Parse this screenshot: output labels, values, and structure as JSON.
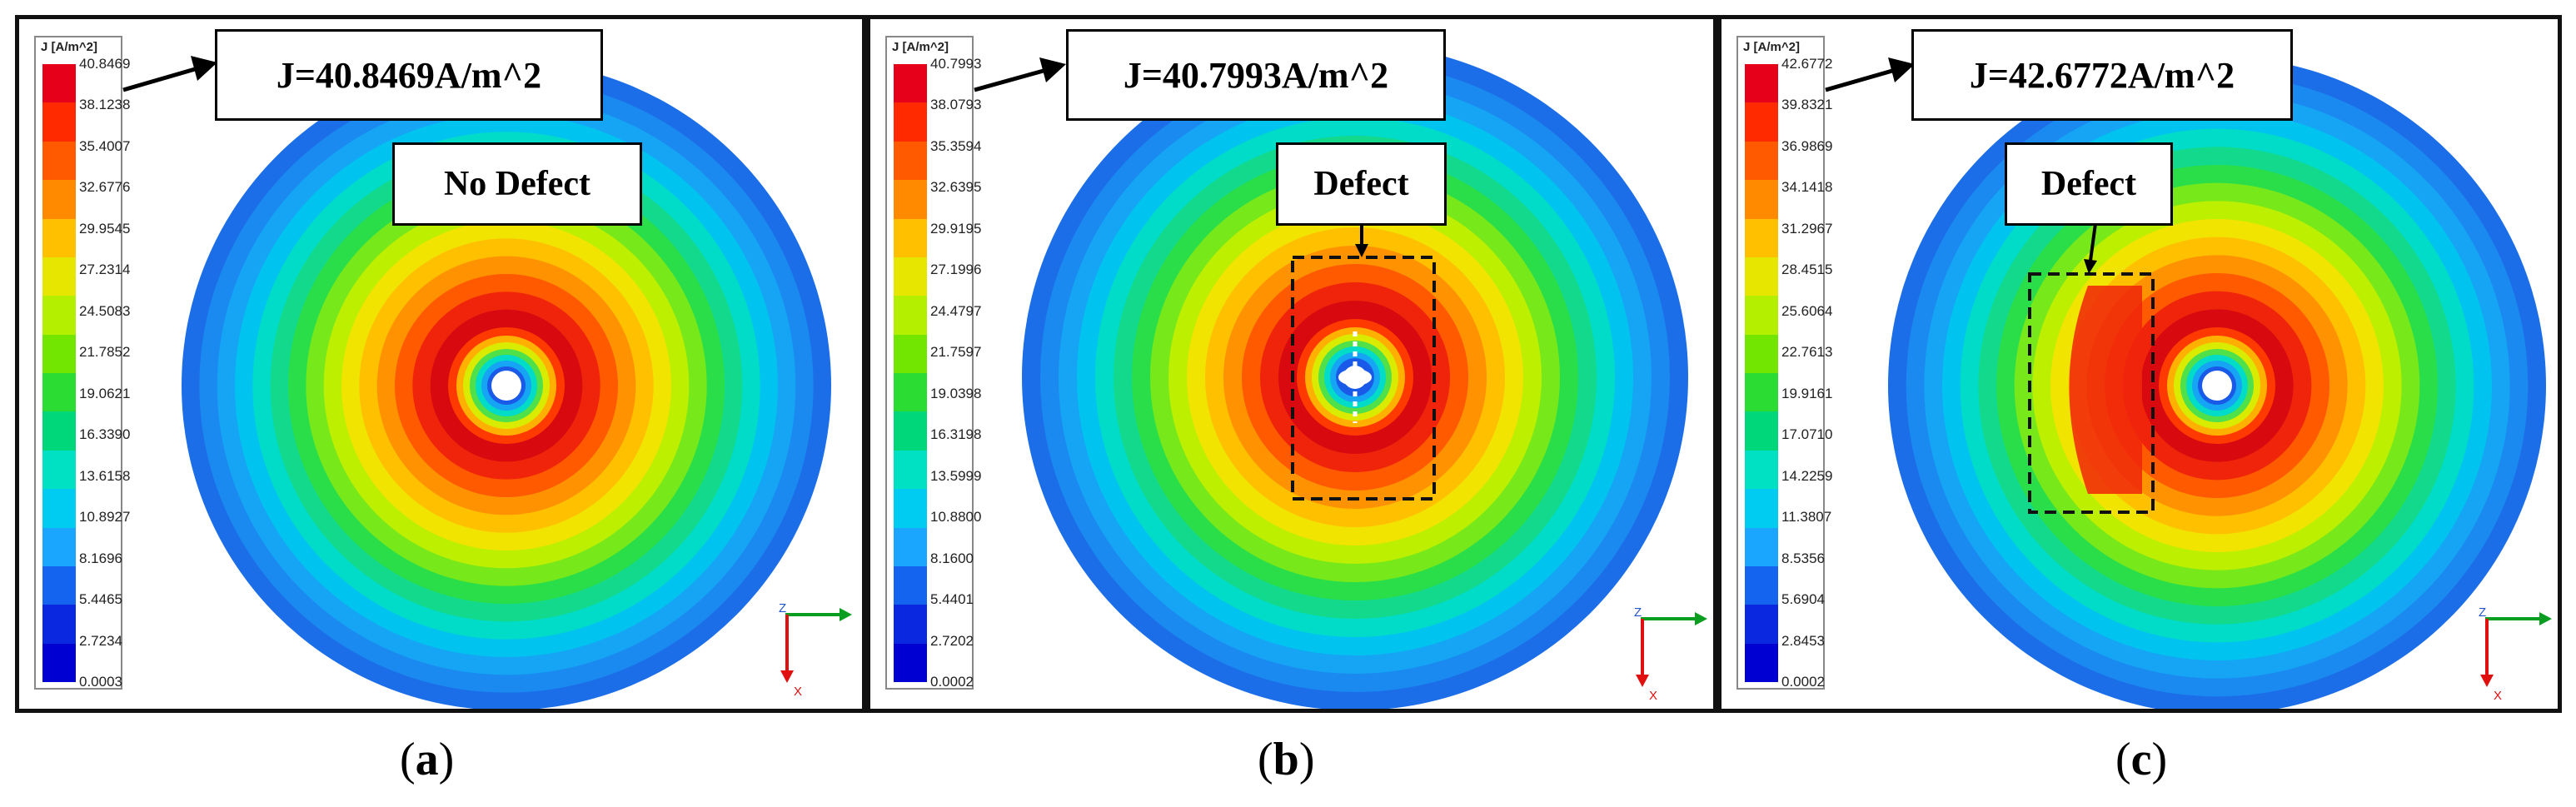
{
  "colors": {
    "scale": [
      "#e6001a",
      "#ff2a00",
      "#ff5a00",
      "#ff8a00",
      "#ffc000",
      "#e6e600",
      "#b4ef00",
      "#73e600",
      "#2bdc33",
      "#00d77a",
      "#00e0c2",
      "#00ccf2",
      "#1aa6ff",
      "#1464f0",
      "#0a28e0",
      "#0000d2"
    ],
    "rings": [
      "#1c6ee8",
      "#1a8af0",
      "#16a4f4",
      "#00c4ef",
      "#00dcc8",
      "#12d98c",
      "#2ade4a",
      "#77e81a",
      "#bdef00",
      "#f0e400",
      "#ffc000",
      "#ff9200",
      "#ff5a00",
      "#f0240a",
      "#d80a10"
    ]
  },
  "panels": [
    {
      "id": "a",
      "caption": "a",
      "legend_title": "J [A/m^2]",
      "legend_ticks": [
        "40.8469",
        "38.1238",
        "35.4007",
        "32.6776",
        "29.9545",
        "27.2314",
        "24.5083",
        "21.7852",
        "19.0621",
        "16.3390",
        "13.6158",
        "10.8927",
        "8.1696",
        "5.4465",
        "2.7234",
        "0.0003"
      ],
      "j_label": "J=40.8469A/m^2",
      "defect_label": "No Defect"
    },
    {
      "id": "b",
      "caption": "b",
      "legend_title": "J [A/m^2]",
      "legend_ticks": [
        "40.7993",
        "38.0793",
        "35.3594",
        "32.6395",
        "29.9195",
        "27.1996",
        "24.4797",
        "21.7597",
        "19.0398",
        "16.3198",
        "13.5999",
        "10.8800",
        "8.1600",
        "5.4401",
        "2.7202",
        "0.0002"
      ],
      "j_label": "J=40.7993A/m^2",
      "defect_label": "Defect"
    },
    {
      "id": "c",
      "caption": "c",
      "legend_title": "J [A/m^2]",
      "legend_ticks": [
        "42.6772",
        "39.8321",
        "36.9869",
        "34.1418",
        "31.2967",
        "28.4515",
        "25.6064",
        "22.7613",
        "19.9161",
        "17.0710",
        "14.2259",
        "11.3807",
        "8.5356",
        "5.6904",
        "2.8453",
        "0.0002"
      ],
      "j_label": "J=42.6772A/m^2",
      "defect_label": "Defect"
    }
  ],
  "axis_labels": {
    "z": "Z",
    "x": "X"
  }
}
